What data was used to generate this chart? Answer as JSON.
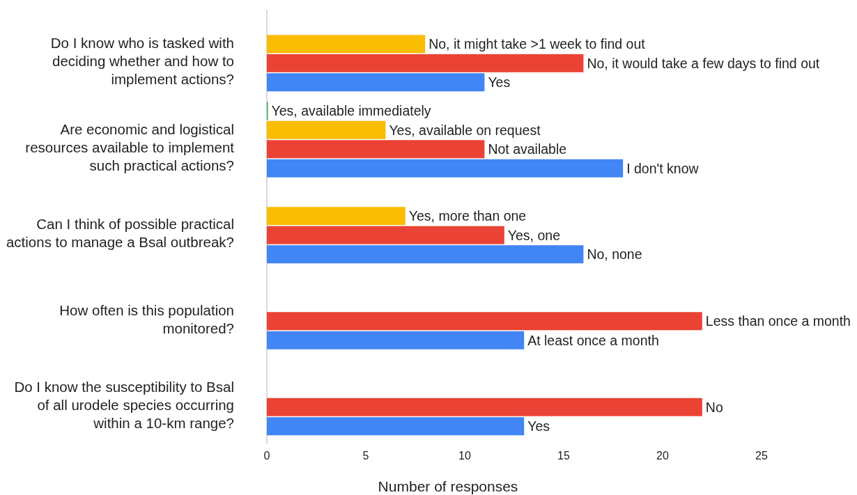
{
  "chart_data": {
    "type": "bar",
    "orientation": "horizontal",
    "xlabel": "Number of responses",
    "categories": [
      "Do I know who is tasked with deciding whether and how to implement actions?",
      "Are economic and logistical resources available to implement such practical actions?",
      "Can I think of possible practical actions to manage a Bsal outbreak?",
      "How often is this population monitored?",
      "Do I know the susceptibility to Bsal of all urodele species occurring within a 10-km range?"
    ],
    "series": [
      {
        "color": "#34a853",
        "values": [
          null,
          0,
          null,
          null,
          null
        ],
        "value_labels": [
          null,
          "Yes, available immediately",
          null,
          null,
          null
        ]
      },
      {
        "color": "#fbbc04",
        "values": [
          8,
          6,
          7,
          null,
          null
        ],
        "value_labels": [
          "No, it might take >1 week to find out",
          "Yes, available on request",
          "Yes, more than one",
          null,
          null
        ]
      },
      {
        "color": "#ea4335",
        "values": [
          16,
          11,
          12,
          22,
          22
        ],
        "value_labels": [
          "No, it would take a few days to find out",
          "Not available",
          "Yes, one",
          "Less than once a month",
          "No"
        ]
      },
      {
        "color": "#4285f4",
        "values": [
          11,
          18,
          16,
          13,
          13
        ],
        "value_labels": [
          "Yes",
          "I don't know",
          "No, none",
          "At least once a month",
          "Yes"
        ]
      }
    ],
    "xlim": [
      0,
      25
    ],
    "xticks": [
      0,
      5,
      10,
      15,
      20,
      25
    ],
    "grid": false
  }
}
